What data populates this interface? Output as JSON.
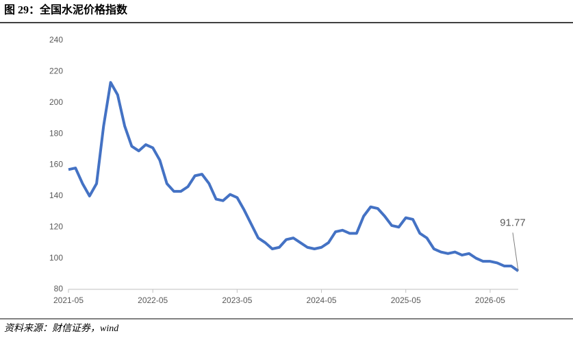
{
  "chart_data": {
    "type": "line",
    "title": "图 29：全国水泥价格指数",
    "source": "资料来源：财信证券，wind",
    "x": [
      "2021-05",
      "2021-06",
      "2021-07",
      "2021-08",
      "2021-09",
      "2021-10",
      "2021-11",
      "2021-12",
      "2022-01",
      "2022-02",
      "2022-03",
      "2022-04",
      "2022-05",
      "2022-06",
      "2022-07",
      "2022-08",
      "2022-09",
      "2022-10",
      "2022-11",
      "2022-12",
      "2023-01",
      "2023-02",
      "2023-03",
      "2023-04",
      "2023-05",
      "2023-06",
      "2023-07",
      "2023-08",
      "2023-09",
      "2023-10",
      "2023-11",
      "2023-12",
      "2024-01",
      "2024-02",
      "2024-03",
      "2024-04",
      "2024-05",
      "2024-06",
      "2024-07",
      "2024-08",
      "2024-09",
      "2024-10",
      "2024-11",
      "2024-12",
      "2025-01",
      "2025-02",
      "2025-03",
      "2025-04",
      "2025-05",
      "2025-06",
      "2025-07",
      "2025-08",
      "2025-09",
      "2025-10",
      "2025-11",
      "2025-12",
      "2026-01",
      "2026-02",
      "2026-03",
      "2026-04",
      "2026-05",
      "2026-06",
      "2026-07",
      "2026-08",
      "2026-09"
    ],
    "series": [
      {
        "name": "全国水泥价格指数",
        "color": "#4472c4",
        "values": [
          157,
          158,
          148,
          140,
          148,
          185,
          213,
          205,
          185,
          172,
          169,
          173,
          171,
          163,
          148,
          143,
          143,
          146,
          153,
          154,
          148,
          138,
          137,
          141,
          139,
          131,
          122,
          113,
          110,
          106,
          107,
          112,
          113,
          110,
          107,
          106,
          107,
          110,
          117,
          118,
          116,
          116,
          127,
          133,
          132,
          127,
          121,
          120,
          126,
          125,
          116,
          113,
          106,
          104,
          103,
          104,
          102,
          103,
          100,
          98,
          98,
          97,
          95,
          95,
          91.77
        ]
      }
    ],
    "xlim": [
      "2021-05",
      "2026-09"
    ],
    "xticks": [
      "2021-05",
      "2022-05",
      "2023-05",
      "2024-05",
      "2025-05",
      "2026-05"
    ],
    "ylim": [
      80,
      240
    ],
    "yticks": [
      80,
      100,
      120,
      140,
      160,
      180,
      200,
      220,
      240
    ],
    "grid": false
  }
}
